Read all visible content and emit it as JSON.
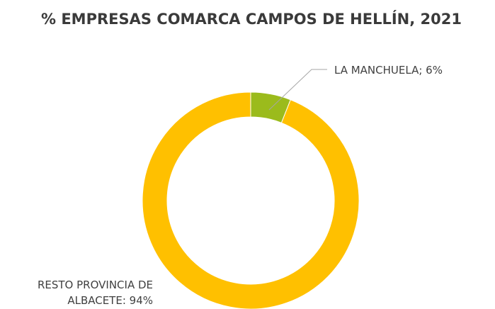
{
  "chart_data": {
    "type": "donut",
    "title": "% EMPRESAS COMARCA CAMPOS DE HELLÍN, 2021",
    "values": [
      6,
      94
    ],
    "value_labels": [
      "LA MANCHUELA; 6%",
      "RESTO PROVINCIA DE ALBACETE: 94%"
    ],
    "colors": [
      "#9bbb1c",
      "#ffc000"
    ]
  }
}
